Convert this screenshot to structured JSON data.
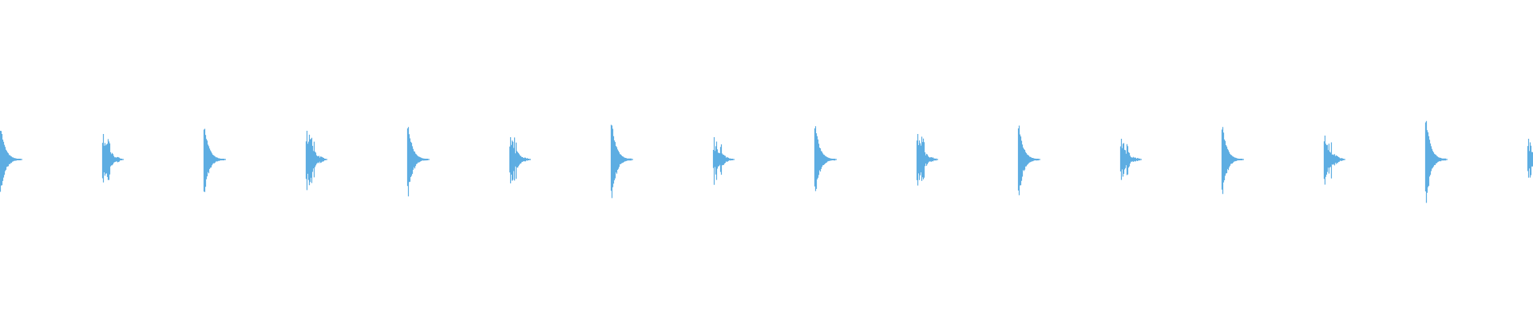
{
  "chart_data": {
    "type": "waveform",
    "title": "",
    "xlabel": "",
    "ylabel": "",
    "axes_visible": false,
    "grid": false,
    "ylim": [
      -1,
      1
    ],
    "color": "#5dade2",
    "background": "#ffffff",
    "bursts": [
      {
        "index": 0,
        "peak": 0.24,
        "kind": "sharp"
      },
      {
        "index": 1,
        "peak": 0.16,
        "kind": "jagged"
      },
      {
        "index": 2,
        "peak": 0.25,
        "kind": "sharp"
      },
      {
        "index": 3,
        "peak": 0.18,
        "kind": "jagged"
      },
      {
        "index": 4,
        "peak": 0.26,
        "kind": "sharp"
      },
      {
        "index": 5,
        "peak": 0.14,
        "kind": "jagged"
      },
      {
        "index": 6,
        "peak": 0.29,
        "kind": "sharp"
      },
      {
        "index": 7,
        "peak": 0.14,
        "kind": "jagged"
      },
      {
        "index": 8,
        "peak": 0.26,
        "kind": "sharp"
      },
      {
        "index": 9,
        "peak": 0.16,
        "kind": "jagged"
      },
      {
        "index": 10,
        "peak": 0.26,
        "kind": "sharp"
      },
      {
        "index": 11,
        "peak": 0.13,
        "kind": "jagged"
      },
      {
        "index": 12,
        "peak": 0.25,
        "kind": "sharp"
      },
      {
        "index": 13,
        "peak": 0.15,
        "kind": "jagged"
      },
      {
        "index": 14,
        "peak": 0.31,
        "kind": "sharp"
      },
      {
        "index": 15,
        "peak": 0.13,
        "kind": "jagged"
      }
    ]
  }
}
